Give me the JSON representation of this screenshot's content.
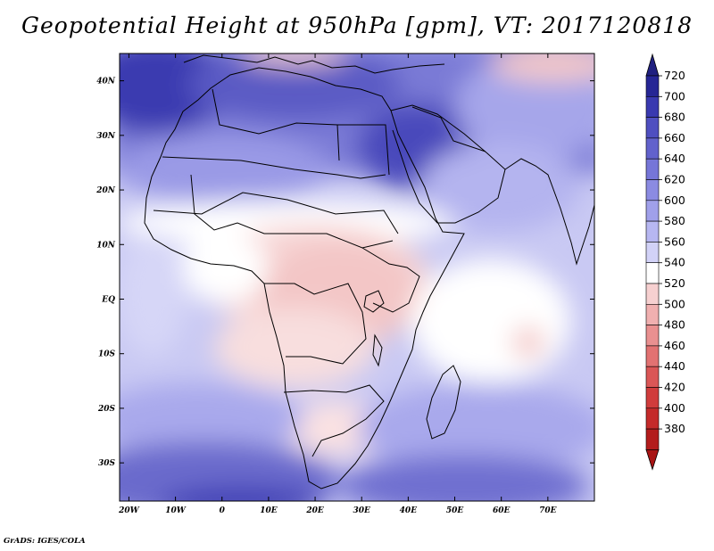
{
  "title": "Geopotential Height at 950hPa [gpm], VT: 2017120818",
  "credit": "GrADS: IGES/COLA",
  "map": {
    "lon_range": [
      -22,
      80
    ],
    "lat_range": [
      -37,
      45
    ],
    "lon_ticks": [
      {
        "value": -20,
        "label": "20W"
      },
      {
        "value": -10,
        "label": "10W"
      },
      {
        "value": 0,
        "label": "0"
      },
      {
        "value": 10,
        "label": "10E"
      },
      {
        "value": 20,
        "label": "20E"
      },
      {
        "value": 30,
        "label": "30E"
      },
      {
        "value": 40,
        "label": "40E"
      },
      {
        "value": 50,
        "label": "50E"
      },
      {
        "value": 60,
        "label": "60E"
      },
      {
        "value": 70,
        "label": "70E"
      }
    ],
    "lat_ticks": [
      {
        "value": 40,
        "label": "40N"
      },
      {
        "value": 30,
        "label": "30N"
      },
      {
        "value": 20,
        "label": "20N"
      },
      {
        "value": 10,
        "label": "10N"
      },
      {
        "value": 0,
        "label": "EQ"
      },
      {
        "value": -10,
        "label": "10S"
      },
      {
        "value": -20,
        "label": "20S"
      },
      {
        "value": -30,
        "label": "30S"
      }
    ]
  },
  "colorbar": {
    "levels": [
      "720",
      "700",
      "680",
      "660",
      "640",
      "620",
      "600",
      "580",
      "560",
      "540",
      "520",
      "500",
      "480",
      "460",
      "440",
      "420",
      "400",
      "380"
    ],
    "colors": [
      "#262695",
      "#3939b0",
      "#4f4fc0",
      "#6262cc",
      "#7676d8",
      "#8b8be2",
      "#a0a0ea",
      "#b7b7f1",
      "#d2d2f7",
      "#ffffff",
      "#f6d0d0",
      "#f0b0b0",
      "#e99090",
      "#e27272",
      "#da5656",
      "#d03c3c",
      "#c42a2a",
      "#b31c1c"
    ],
    "top_color": "#202080",
    "bottom_color": "#a81414"
  },
  "colors": {
    "deep_blue": "#3636ad",
    "mid_blue": "#6a6ad0",
    "light_blue": "#a2a2ea",
    "pale_blue": "#cfcff6",
    "white": "#ffffff",
    "pink": "#f8d8d8",
    "pink2": "#f2c0c0",
    "coast": "#000000"
  }
}
